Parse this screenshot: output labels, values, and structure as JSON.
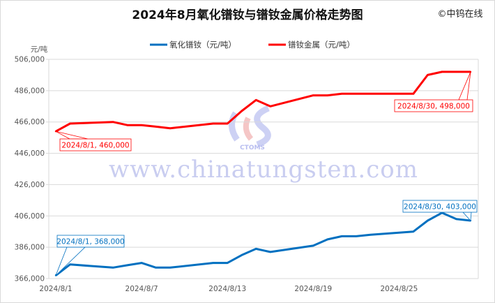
{
  "watermark": "©中钨在线",
  "site_watermark": "www.chinatungsten.com",
  "logo_text": "CTOMS",
  "chart_data": {
    "type": "line",
    "title": "2024年8月氧化镨钕与镨钕金属价格走势图",
    "ylabel": "元/吨",
    "xlabel": "",
    "ylim": [
      366000,
      506000
    ],
    "yticks": [
      366000,
      386000,
      406000,
      426000,
      446000,
      466000,
      486000,
      506000
    ],
    "ytick_labels": [
      "366,000",
      "386,000",
      "406,000",
      "426,000",
      "446,000",
      "466,000",
      "486,000",
      "506,000"
    ],
    "xlim": [
      "2024/8/1",
      "2024/8/30"
    ],
    "xtick_labels": [
      "2024/8/1",
      "2024/8/7",
      "2024/8/13",
      "2024/8/19",
      "2024/8/25"
    ],
    "grid": true,
    "legend_position": "top",
    "x": [
      "2024/8/1",
      "2024/8/2",
      "2024/8/5",
      "2024/8/6",
      "2024/8/7",
      "2024/8/8",
      "2024/8/9",
      "2024/8/12",
      "2024/8/13",
      "2024/8/14",
      "2024/8/15",
      "2024/8/16",
      "2024/8/19",
      "2024/8/20",
      "2024/8/21",
      "2024/8/22",
      "2024/8/23",
      "2024/8/26",
      "2024/8/27",
      "2024/8/28",
      "2024/8/29",
      "2024/8/30"
    ],
    "series": [
      {
        "name": "氧化镨钕（元/吨）",
        "color": "#0070c0",
        "values": [
          368000,
          375000,
          373000,
          374500,
          376000,
          373000,
          373000,
          376000,
          376000,
          381000,
          385000,
          383000,
          387000,
          391000,
          393000,
          393000,
          394000,
          396000,
          403000,
          408000,
          404000,
          403000
        ],
        "annotations": [
          {
            "label": "2024/8/1, 368,000",
            "x": "2024/8/1"
          },
          {
            "label": "2024/8/30, 403,000",
            "x": "2024/8/30"
          }
        ]
      },
      {
        "name": "镨钕金属（元/吨）",
        "color": "#ff0000",
        "values": [
          460000,
          465000,
          466000,
          464000,
          464000,
          463000,
          462000,
          465000,
          465000,
          473000,
          480000,
          476000,
          483000,
          483000,
          484000,
          484000,
          484000,
          484000,
          496000,
          498000,
          498000,
          498000
        ],
        "annotations": [
          {
            "label": "2024/8/1, 460,000",
            "x": "2024/8/1"
          },
          {
            "label": "2024/8/30, 498,000",
            "x": "2024/8/30"
          }
        ]
      }
    ]
  }
}
